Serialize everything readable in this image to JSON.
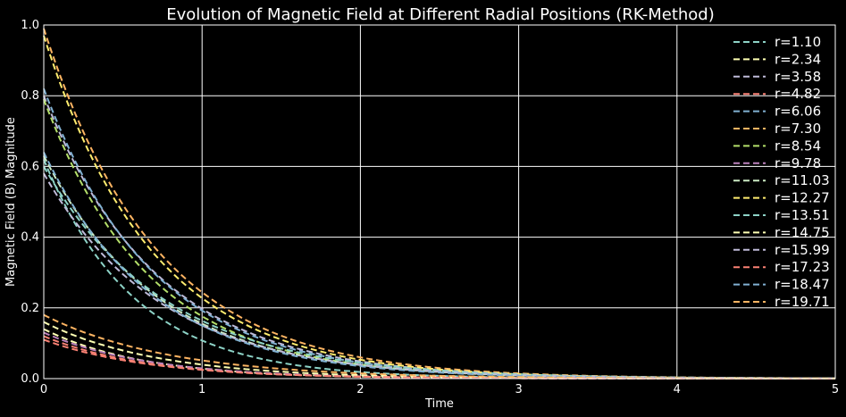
{
  "chart_data": {
    "type": "line",
    "title": "Evolution of Magnetic Field at Different Radial Positions (RK-Method)",
    "xlabel": "Time",
    "ylabel": "Magnetic Field (B) Magnitude",
    "xlim": [
      0,
      5
    ],
    "ylim": [
      0,
      1.0
    ],
    "xticks": [
      0,
      1,
      2,
      3,
      4,
      5
    ],
    "yticks": [
      0.0,
      0.2,
      0.4,
      0.6,
      0.8,
      1.0
    ],
    "xtick_labels": [
      "0",
      "1",
      "2",
      "3",
      "4",
      "5"
    ],
    "ytick_labels": [
      "0.0",
      "0.2",
      "0.4",
      "0.6",
      "0.8",
      "1.0"
    ],
    "grid": true,
    "legend_position": "top-right",
    "line_style": "dashed",
    "series": [
      {
        "name": "r=1.10",
        "color": "#8dd3c7",
        "y0": 0.62,
        "decay": 1.75
      },
      {
        "name": "r=2.34",
        "color": "#feffb3",
        "y0": 0.14,
        "decay": 1.6
      },
      {
        "name": "r=3.58",
        "color": "#bfbbd9",
        "y0": 0.8,
        "decay": 1.4
      },
      {
        "name": "r=4.82",
        "color": "#fa8174",
        "y0": 0.11,
        "decay": 1.5
      },
      {
        "name": "r=6.06",
        "color": "#81b1d2",
        "y0": 0.82,
        "decay": 1.45
      },
      {
        "name": "r=7.30",
        "color": "#fdb462",
        "y0": 0.99,
        "decay": 1.4
      },
      {
        "name": "r=8.54",
        "color": "#b3de69",
        "y0": 0.79,
        "decay": 1.5
      },
      {
        "name": "r=9.78",
        "color": "#bc82bd",
        "y0": 0.13,
        "decay": 1.5
      },
      {
        "name": "r=11.03",
        "color": "#ccebc4",
        "y0": 0.63,
        "decay": 1.4
      },
      {
        "name": "r=12.27",
        "color": "#ffed6f",
        "y0": 0.97,
        "decay": 1.45
      },
      {
        "name": "r=13.51",
        "color": "#8dd3c7",
        "y0": 0.6,
        "decay": 1.3
      },
      {
        "name": "r=14.75",
        "color": "#feffb3",
        "y0": 0.16,
        "decay": 1.4
      },
      {
        "name": "r=15.99",
        "color": "#bfbbd9",
        "y0": 0.58,
        "decay": 1.35
      },
      {
        "name": "r=17.23",
        "color": "#fa8174",
        "y0": 0.12,
        "decay": 1.55
      },
      {
        "name": "r=18.47",
        "color": "#81b1d2",
        "y0": 0.64,
        "decay": 1.45
      },
      {
        "name": "r=19.71",
        "color": "#fdb462",
        "y0": 0.18,
        "decay": 1.25
      }
    ]
  }
}
